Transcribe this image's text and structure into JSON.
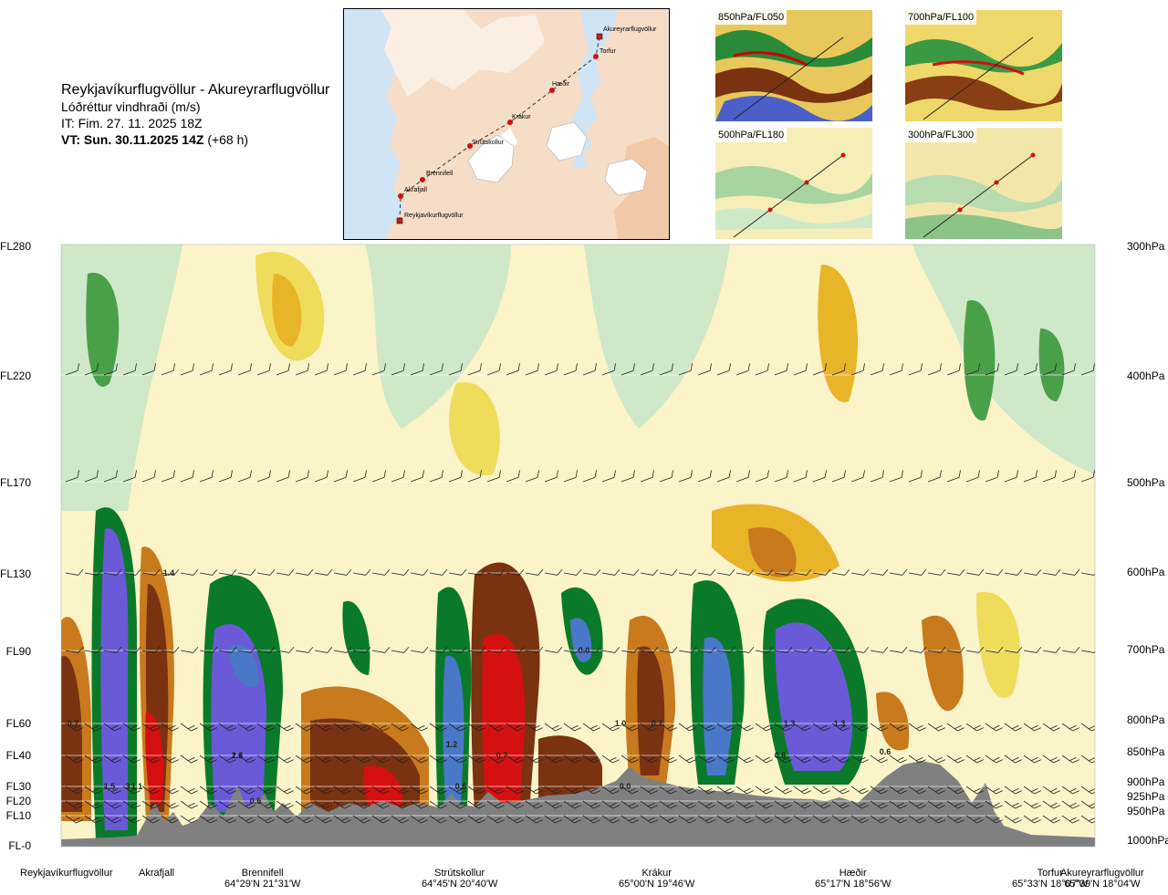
{
  "header": {
    "route": "Reykjavíkurflugvöllur - Akureyrarflugvöllur",
    "quantity": "Lóðréttur vindhraði (m/s)",
    "issue_time": "IT: Fim. 27. 11. 2025 18Z",
    "valid_label": "VT: Sun. 30.11.2025 14Z",
    "valid_offset": "(+68 h)"
  },
  "route_map": {
    "waypoints": [
      "Akureyrarflugvöllur",
      "Torfur",
      "Hæðir",
      "Krákur",
      "Strútskollur",
      "Brennifell",
      "Akrafjall",
      "Reykjavíkurflugvöllur"
    ]
  },
  "level_maps": [
    {
      "label": "850hPa/FL050"
    },
    {
      "label": "700hPa/FL100"
    },
    {
      "label": "500hPa/FL180"
    },
    {
      "label": "300hPa/FL300"
    }
  ],
  "colors": {
    "strong_up": "#6a5ad8",
    "up_blue": "#4a78c8",
    "up_green_dark": "#0a7a2a",
    "up_green": "#4aa048",
    "up_green_light": "#9ccc94",
    "up_green_pale": "#cfe8c8",
    "neutral": "#fbf4c8",
    "down_yellow": "#eedc5a",
    "down_gold": "#e8b428",
    "down_orange": "#c87a1c",
    "down_brown": "#7a3210",
    "strong_down": "#d41010",
    "terrain": "#808080"
  },
  "chart_data": {
    "type": "heatmap",
    "title": "",
    "xlabel": "",
    "ylabel": "",
    "y_left_ticks": [
      "FL280",
      "FL220",
      "FL170",
      "FL130",
      "FL90",
      "FL60",
      "FL40",
      "FL30",
      "FL20",
      "FL10",
      "FL-0"
    ],
    "y_right_ticks": [
      "300hPa",
      "400hPa",
      "500hPa",
      "600hPa",
      "700hPa",
      "800hPa",
      "850hPa",
      "900hPa",
      "925hPa",
      "950hPa",
      "1000hPa"
    ],
    "locations": [
      {
        "name": "Reykjavíkurflugvöllur",
        "coord": ""
      },
      {
        "name": "Akrafjall",
        "coord": ""
      },
      {
        "name": "Brennifell",
        "coord": "64°29'N 21°31'W"
      },
      {
        "name": "Strútskollur",
        "coord": "64°45'N 20°40'W"
      },
      {
        "name": "Krákur",
        "coord": "65°00'N 19°46'W"
      },
      {
        "name": "Hæðir",
        "coord": "65°17'N 18°56'W"
      },
      {
        "name": "Torfur",
        "coord": "65°33'N 18°07'W"
      },
      {
        "name": "Akureyrarflugvöllur",
        "coord": "65°39'N 18°04'W"
      }
    ],
    "value_labels": [
      {
        "text": "1.4",
        "location": "Akrafjall",
        "level": "FL130"
      },
      {
        "text": "0.7",
        "location": "Reykjavíkurflugvöllur",
        "level": "FL60"
      },
      {
        "text": "2.6",
        "location": "Brennifell",
        "level": "FL40"
      },
      {
        "text": "1.5",
        "location": "Akrafjall",
        "level": "FL30"
      },
      {
        "text": "3",
        "location": "Akrafjall",
        "level": "FL30"
      },
      {
        "text": "1.1",
        "location": "Akrafjall",
        "level": "FL30"
      },
      {
        "text": "1.1",
        "location": "Brennifell",
        "level": "FL40"
      },
      {
        "text": "0.5",
        "location": "Brennifell",
        "level": "FL20"
      },
      {
        "text": "1.2",
        "location": "Strútskollur",
        "level": "FL40"
      },
      {
        "text": "0.7",
        "location": "Strútskollur",
        "level": "FL40"
      },
      {
        "text": "0.6",
        "location": "Strútskollur",
        "level": "FL30"
      },
      {
        "text": "0.0",
        "location": "Krákur",
        "level": "FL30"
      },
      {
        "text": "0.0",
        "location": "Krákur",
        "level": "FL90"
      },
      {
        "text": "0.7",
        "location": "Krákur",
        "level": "FL60"
      },
      {
        "text": "1.0",
        "location": "Krákur",
        "level": "FL60"
      },
      {
        "text": "0.6",
        "location": "Hæðir",
        "level": "FL40"
      },
      {
        "text": "1.3",
        "location": "Hæðir",
        "level": "FL60"
      },
      {
        "text": "1.3",
        "location": "Hæðir",
        "level": "FL60"
      },
      {
        "text": "0.6",
        "location": "Hæðir",
        "level": "FL40"
      }
    ],
    "legend": "none",
    "grid": true
  }
}
